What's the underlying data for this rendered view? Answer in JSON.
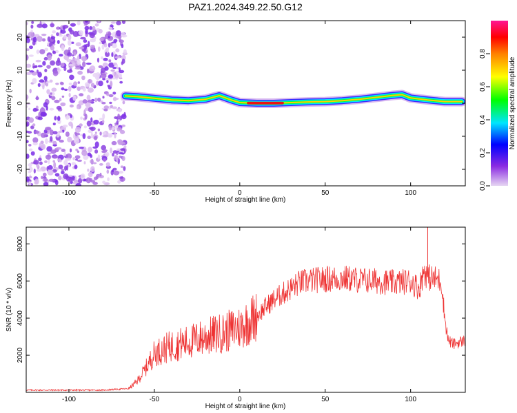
{
  "title": "PAZ1.2024.349.22.50.G12",
  "chart_data": [
    {
      "type": "heatmap",
      "xlabel": "Height of straight line (km)",
      "ylabel": "Frequency (Hz)",
      "xlim": [
        -125,
        132
      ],
      "ylim": [
        -25,
        25
      ],
      "xticks": [
        -100,
        -50,
        0,
        50,
        100
      ],
      "yticks": [
        -20,
        -10,
        0,
        10,
        20
      ],
      "grid": false,
      "colorbar": {
        "label": "Normalized spectral amplitude",
        "range": [
          0,
          1
        ],
        "ticks": [
          "0.0",
          "0.2",
          "0.4",
          "0.6",
          "0.8"
        ]
      },
      "features": {
        "noise_region_x": [
          -125,
          -67
        ],
        "signal_line": {
          "x": [
            -67,
            -60,
            -50,
            -40,
            -30,
            -20,
            -12,
            -5,
            0,
            10,
            20,
            30,
            40,
            50,
            60,
            70,
            80,
            90,
            95,
            100,
            110,
            120,
            130
          ],
          "y": [
            2.2,
            2.0,
            1.5,
            1.0,
            0.8,
            1.2,
            2.3,
            1.0,
            0.2,
            0.0,
            0.0,
            0.2,
            0.4,
            0.5,
            0.8,
            1.2,
            1.8,
            2.4,
            2.6,
            1.6,
            1.0,
            0.5,
            0.5
          ]
        }
      }
    },
    {
      "type": "line",
      "xlabel": "Height of straight line (km)",
      "ylabel": "SNR (10 * v/v)",
      "xlim": [
        -125,
        132
      ],
      "ylim": [
        0,
        8900
      ],
      "xticks": [
        -100,
        -50,
        0,
        50,
        100
      ],
      "yticks": [
        2000,
        4000,
        6000,
        8000
      ],
      "grid": false,
      "series": [
        {
          "color": "#ee3333",
          "x": [
            -125,
            -100,
            -80,
            -65,
            -60,
            -55,
            -50,
            -45,
            -40,
            -30,
            -20,
            -10,
            0,
            10,
            15,
            20,
            25,
            30,
            35,
            40,
            50,
            60,
            70,
            80,
            90,
            100,
            105,
            108,
            110,
            115,
            118,
            120,
            122,
            125,
            132
          ],
          "y": [
            120,
            120,
            120,
            200,
            600,
            1300,
            2100,
            2300,
            2500,
            2700,
            3000,
            3200,
            3500,
            4100,
            4600,
            5000,
            5300,
            5600,
            5900,
            6000,
            6100,
            6150,
            6050,
            6000,
            5900,
            6000,
            5600,
            6600,
            6200,
            6100,
            6000,
            4000,
            2800,
            2600,
            2800
          ]
        }
      ]
    }
  ]
}
